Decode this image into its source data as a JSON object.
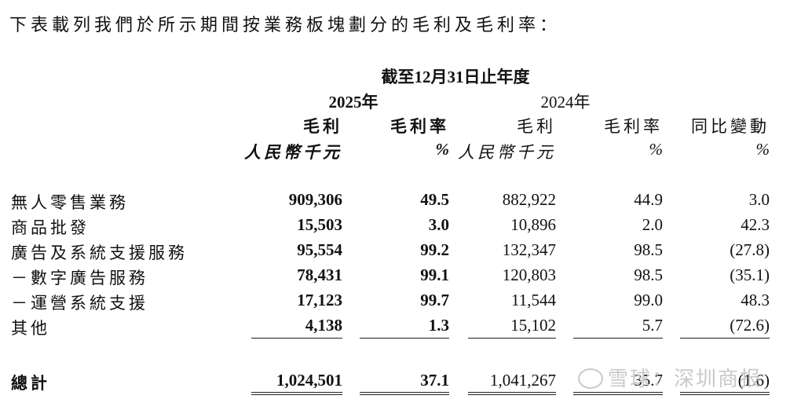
{
  "intro": "下表載列我們於所示期間按業務板塊劃分的毛利及毛利率：",
  "header": {
    "period": "截至12月31日止年度",
    "year_2025": "2025年",
    "year_2024": "2024年",
    "col_gp_2025": "毛利",
    "col_gm_2025": "毛利率",
    "col_gp_2024": "毛利",
    "col_gm_2024": "毛利率",
    "col_yoy": "同比變動",
    "unit_gp_2025": "人民幣千元",
    "unit_gm_2025": "%",
    "unit_gp_2024": "人民幣千元",
    "unit_gm_2024": "%",
    "unit_yoy": "%"
  },
  "rows": [
    {
      "label": "無人零售業務",
      "gp_2025": "909,306",
      "gm_2025": "49.5",
      "gp_2024": "882,922",
      "gm_2024": "44.9",
      "yoy": "3.0"
    },
    {
      "label": "商品批發",
      "gp_2025": "15,503",
      "gm_2025": "3.0",
      "gp_2024": "10,896",
      "gm_2024": "2.0",
      "yoy": "42.3"
    },
    {
      "label": "廣告及系統支援服務",
      "gp_2025": "95,554",
      "gm_2025": "99.2",
      "gp_2024": "132,347",
      "gm_2024": "98.5",
      "yoy": "(27.8)"
    },
    {
      "label": "－數字廣告服務",
      "gp_2025": "78,431",
      "gm_2025": "99.1",
      "gp_2024": "120,803",
      "gm_2024": "98.5",
      "yoy": "(35.1)"
    },
    {
      "label": "－運營系統支援",
      "gp_2025": "17,123",
      "gm_2025": "99.7",
      "gp_2024": "11,544",
      "gm_2024": "99.0",
      "yoy": "48.3"
    },
    {
      "label": "其他",
      "gp_2025": "4,138",
      "gm_2025": "1.3",
      "gp_2024": "15,102",
      "gm_2024": "5.7",
      "yoy": "(72.6)"
    }
  ],
  "total": {
    "label": "總計",
    "gp_2025": "1,024,501",
    "gm_2025": "37.1",
    "gp_2024": "1,041,267",
    "gm_2024": "35.7",
    "yoy": "(1.6)"
  },
  "watermark": "雪球：深圳商报"
}
